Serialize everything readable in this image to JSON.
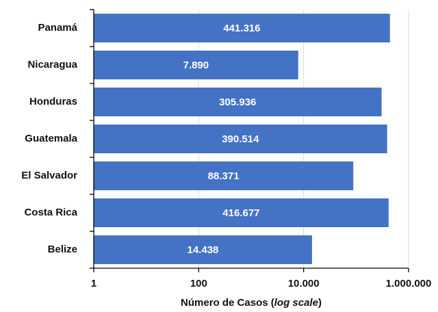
{
  "chart_data": {
    "type": "bar",
    "orientation": "horizontal",
    "categories": [
      "Panamá",
      "Nicaragua",
      "Honduras",
      "Guatemala",
      "El Salvador",
      "Costa Rica",
      "Belize"
    ],
    "values": [
      441316,
      7890,
      305936,
      390514,
      88371,
      416677,
      14438
    ],
    "value_labels": [
      "441.316",
      "7.890",
      "305.936",
      "390.514",
      "88.371",
      "416.677",
      "14.438"
    ],
    "color": "#4472c4",
    "x_label": [
      "Número de Casos (",
      "log scale",
      ")"
    ],
    "xscale": "log",
    "xlim": [
      1,
      1000000
    ],
    "xticks": [
      1,
      100,
      {
        "value": 10000,
        "label": "10.000"
      },
      {
        "value": 1000000,
        "label": "1.000.000"
      }
    ],
    "grid": true
  }
}
